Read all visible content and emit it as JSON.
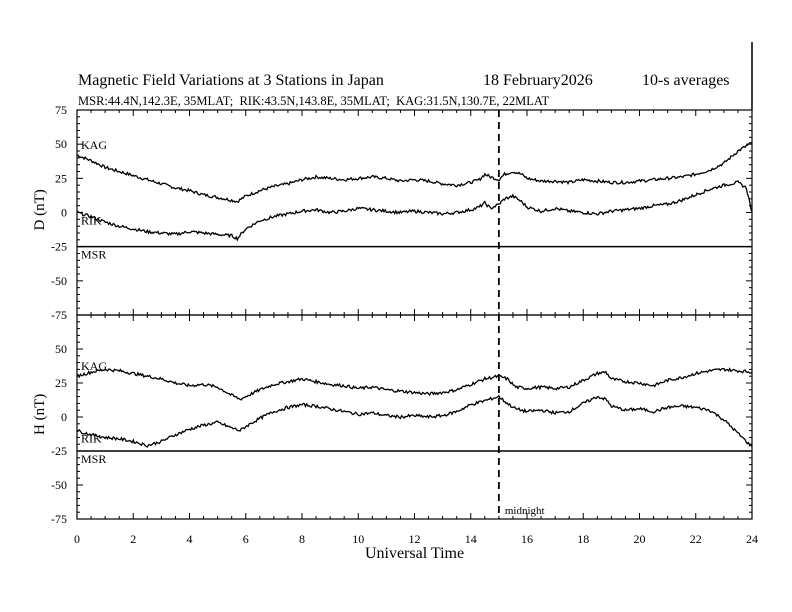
{
  "title": {
    "main": "Magnetic Field Variations at 3 Stations in Japan",
    "date": "18 February2026",
    "avg": "10-s averages",
    "stations": "MSR:44.4N,142.3E, 35MLAT;  RIK:43.5N,143.8E, 35MLAT;  KAG:31.5N,130.7E, 22MLAT"
  },
  "chart_data": [
    {
      "type": "line",
      "panel": "D",
      "ylabel": "D (nT)",
      "ylim": [
        -75,
        75
      ],
      "yticks": [
        75,
        50,
        25,
        0,
        -25,
        -50,
        -75
      ],
      "xlim": [
        0,
        24
      ],
      "series": [
        {
          "name": "KAG",
          "x": [
            0,
            0.5,
            1,
            1.5,
            2,
            2.5,
            3,
            3.5,
            4,
            4.5,
            5,
            5.5,
            5.7,
            6,
            6.5,
            7,
            7.5,
            8,
            8.5,
            9,
            9.5,
            10,
            10.5,
            11,
            11.5,
            12,
            12.5,
            13,
            13.5,
            14,
            14.3,
            14.5,
            14.7,
            15,
            15.2,
            15.5,
            15.8,
            16,
            16.5,
            17,
            17.5,
            18,
            18.5,
            19,
            19.5,
            20,
            20.5,
            21,
            21.5,
            22,
            22.5,
            23,
            23.5,
            24
          ],
          "values": [
            42,
            38,
            33,
            30,
            27,
            24,
            21,
            18,
            16,
            13,
            11,
            9,
            8,
            12,
            16,
            19,
            21,
            24,
            26,
            25,
            24,
            25,
            26,
            25,
            23,
            24,
            23,
            21,
            20,
            22,
            24,
            28,
            26,
            24,
            28,
            30,
            28,
            25,
            23,
            23,
            22,
            24,
            23,
            22,
            22,
            23,
            24,
            25,
            26,
            28,
            31,
            36,
            45,
            51
          ]
        },
        {
          "name": "RIK",
          "x": [
            0,
            0.5,
            1,
            1.5,
            2,
            2.5,
            3,
            3.5,
            4,
            4.5,
            5,
            5.5,
            5.7,
            6,
            6.5,
            7,
            7.5,
            8,
            8.5,
            9,
            9.5,
            10,
            10.5,
            11,
            11.5,
            12,
            12.5,
            13,
            13.5,
            14,
            14.3,
            14.5,
            14.7,
            15,
            15.2,
            15.5,
            15.8,
            16,
            16.5,
            17,
            17.5,
            18,
            18.5,
            19,
            19.5,
            20,
            20.5,
            21,
            21.5,
            22,
            22.5,
            23,
            23.5,
            23.8,
            24
          ],
          "values": [
            0,
            -3,
            -7,
            -10,
            -12,
            -14,
            -15,
            -16,
            -14,
            -15,
            -16,
            -17,
            -19,
            -12,
            -6,
            -3,
            -1,
            1,
            2,
            0,
            1,
            3,
            2,
            1,
            0,
            1,
            0,
            -1,
            0,
            2,
            4,
            7,
            3,
            6,
            10,
            12,
            8,
            4,
            1,
            3,
            1,
            0,
            -1,
            1,
            2,
            3,
            5,
            6,
            9,
            13,
            17,
            20,
            22,
            18,
            0
          ]
        },
        {
          "name": "MSR",
          "x": [
            0,
            24
          ],
          "values": [
            -25,
            -25
          ]
        }
      ]
    },
    {
      "type": "line",
      "panel": "H",
      "ylabel": "H (nT)",
      "xlabel": "Universal Time",
      "ylim": [
        -75,
        75
      ],
      "yticks": [
        75,
        50,
        25,
        0,
        -25,
        -50,
        -75
      ],
      "xlim": [
        0,
        24
      ],
      "xticks": [
        0,
        2,
        4,
        6,
        8,
        10,
        12,
        14,
        16,
        18,
        20,
        22,
        24
      ],
      "annotation": {
        "x": 15,
        "label": "midnight"
      },
      "series": [
        {
          "name": "KAG",
          "x": [
            0,
            0.5,
            1,
            1.5,
            2,
            2.5,
            3,
            3.5,
            4,
            4.5,
            5,
            5.5,
            5.8,
            6,
            6.5,
            7,
            7.5,
            8,
            8.5,
            9,
            9.5,
            10,
            10.5,
            11,
            11.5,
            12,
            12.5,
            13,
            13.5,
            14,
            14.5,
            15,
            15.3,
            15.6,
            16,
            16.5,
            17,
            17.5,
            18,
            18.5,
            18.8,
            19,
            19.5,
            20,
            20.5,
            21,
            21.5,
            22,
            22.5,
            23,
            23.5,
            24
          ],
          "values": [
            30,
            33,
            35,
            34,
            32,
            30,
            28,
            25,
            23,
            24,
            22,
            16,
            13,
            15,
            20,
            24,
            26,
            28,
            26,
            24,
            23,
            21,
            22,
            20,
            19,
            18,
            17,
            18,
            20,
            24,
            28,
            30,
            28,
            22,
            21,
            22,
            21,
            22,
            27,
            32,
            33,
            28,
            26,
            25,
            23,
            27,
            29,
            32,
            34,
            35,
            34,
            33
          ]
        },
        {
          "name": "RIK",
          "x": [
            0,
            0.5,
            1,
            1.5,
            2,
            2.5,
            3,
            3.5,
            4,
            4.5,
            5,
            5.5,
            5.8,
            6,
            6.5,
            7,
            7.5,
            8,
            8.5,
            9,
            9.5,
            10,
            10.5,
            11,
            11.5,
            12,
            12.5,
            13,
            13.5,
            14,
            14.5,
            15,
            15.3,
            15.6,
            16,
            16.5,
            17,
            17.5,
            18,
            18.5,
            18.8,
            19,
            19.5,
            20,
            20.5,
            21,
            21.5,
            22,
            22.5,
            23,
            23.5,
            24
          ],
          "values": [
            -10,
            -13,
            -15,
            -16,
            -18,
            -21,
            -18,
            -13,
            -9,
            -6,
            -4,
            -8,
            -10,
            -7,
            -1,
            4,
            7,
            9,
            8,
            6,
            4,
            2,
            3,
            1,
            0,
            1,
            0,
            1,
            4,
            9,
            12,
            15,
            10,
            6,
            4,
            5,
            3,
            4,
            10,
            15,
            13,
            8,
            5,
            6,
            4,
            7,
            8,
            7,
            5,
            -2,
            -12,
            -22
          ]
        },
        {
          "name": "MSR",
          "x": [
            0,
            24
          ],
          "values": [
            -25,
            -25
          ]
        }
      ]
    }
  ]
}
